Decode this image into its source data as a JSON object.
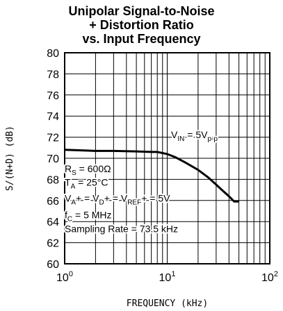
{
  "chart_data": {
    "type": "line",
    "title_lines": [
      "Unipolar Signal-to-Noise",
      "+ Distortion Ratio",
      "vs. Input Frequency"
    ],
    "xlabel": "FREQUENCY (kHz)",
    "ylabel": "S/(N+D) (dB)",
    "xscale": "log",
    "xlim": [
      1,
      100
    ],
    "ylim": [
      60,
      80
    ],
    "x_ticks": [
      {
        "base": "10",
        "exp": "0",
        "value": 1
      },
      {
        "base": "10",
        "exp": "1",
        "value": 10
      },
      {
        "base": "10",
        "exp": "2",
        "value": 100
      }
    ],
    "y_ticks": [
      "80",
      "78",
      "76",
      "74",
      "72",
      "70",
      "68",
      "66",
      "64",
      "62",
      "60"
    ],
    "grid": true,
    "series": [
      {
        "x": [
          1,
          2,
          3,
          5,
          7,
          8,
          10,
          12,
          15,
          20,
          25,
          30,
          35,
          40,
          45,
          50
        ],
        "y": [
          70.8,
          70.7,
          70.7,
          70.65,
          70.6,
          70.6,
          70.4,
          70.1,
          69.6,
          68.9,
          68.2,
          67.5,
          66.9,
          66.4,
          65.9,
          65.9
        ]
      }
    ],
    "annotations": {
      "vin": {
        "main": "V",
        "sub1": "IN",
        "mid": " = 5V",
        "sub2": "p-p"
      },
      "rs": {
        "main": "R",
        "sub": "S",
        "rest": " = 600Ω"
      },
      "ta": {
        "main": "T",
        "sub": "A",
        "rest": " = 25°C"
      },
      "vref": {
        "p1": "V",
        "s1": "A",
        "p2": "+ = V",
        "s2": "D",
        "p3": "+ = V",
        "s3": "REF",
        "p4": "+ = 5V"
      },
      "fc": {
        "main": "f",
        "sub": "C",
        "rest": " = 5 MHz"
      },
      "sampling": "Sampling Rate = 73.5 kHz"
    }
  }
}
